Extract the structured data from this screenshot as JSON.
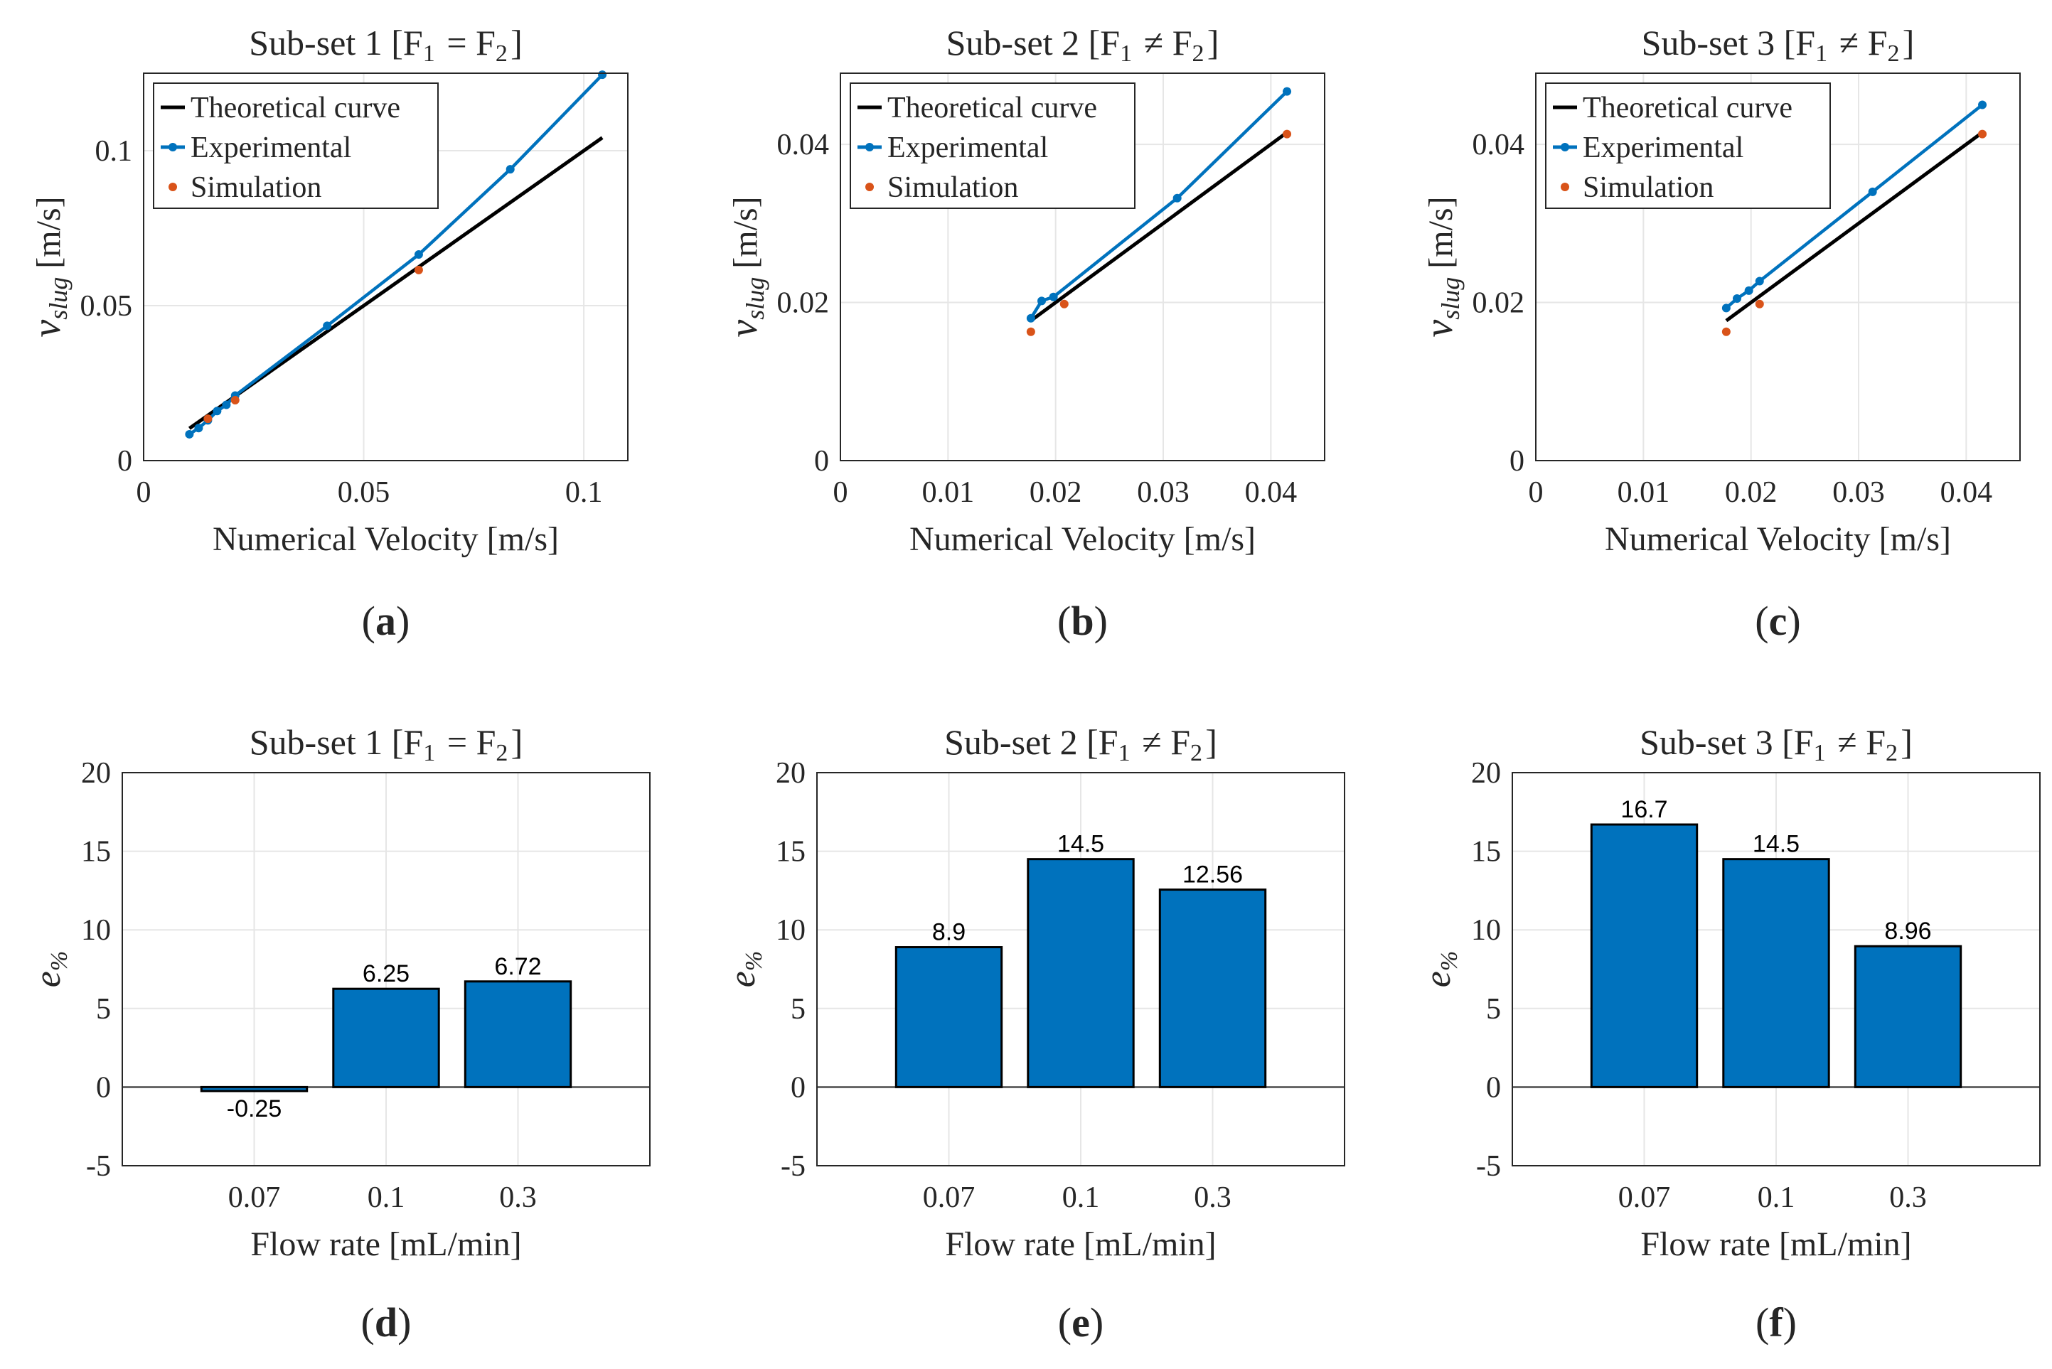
{
  "chart_data": [
    {
      "type": "line",
      "panel_label": "(a)",
      "title": "Sub-set 1 [F1 = F2]",
      "xlabel": "Numerical Velocity [m/s]",
      "ylabel": "v_slug [m/s]",
      "xlim": [
        0,
        0.11
      ],
      "ylim": [
        0,
        0.125
      ],
      "xticks": [
        0,
        0.05,
        0.1
      ],
      "xtick_labels": [
        "0",
        "0.05",
        "0.1"
      ],
      "yticks": [
        0,
        0.05,
        0.1
      ],
      "ytick_labels": [
        "0",
        "0.05",
        "0.1"
      ],
      "grid": true,
      "legend_position": "top-left",
      "series": [
        {
          "name": "Theoretical curve",
          "color": "#000000",
          "style": "line",
          "x": [
            0.0104,
            0.1042
          ],
          "y": [
            0.0104,
            0.1042
          ]
        },
        {
          "name": "Experimental",
          "color": "#0072BD",
          "style": "line-marker",
          "x": [
            0.0104,
            0.0125,
            0.0146,
            0.0167,
            0.0188,
            0.0208,
            0.0417,
            0.0625,
            0.0833,
            0.1042
          ],
          "y": [
            0.0085,
            0.0105,
            0.013,
            0.016,
            0.018,
            0.021,
            0.0435,
            0.0665,
            0.094,
            0.1245
          ]
        },
        {
          "name": "Simulation",
          "color": "#D95319",
          "style": "marker",
          "x": [
            0.0146,
            0.0208,
            0.0625
          ],
          "y": [
            0.0135,
            0.0195,
            0.0615
          ]
        }
      ]
    },
    {
      "type": "line",
      "panel_label": "(b)",
      "title": "Sub-set 2 [F1 ≠ F2]",
      "xlabel": "Numerical Velocity [m/s]",
      "ylabel": "v_slug [m/s]",
      "xlim": [
        0,
        0.045
      ],
      "ylim": [
        0,
        0.049
      ],
      "xticks": [
        0,
        0.01,
        0.02,
        0.03,
        0.04
      ],
      "xtick_labels": [
        "0",
        "0.01",
        "0.02",
        "0.03",
        "0.04"
      ],
      "yticks": [
        0,
        0.02,
        0.04
      ],
      "ytick_labels": [
        "0",
        "0.02",
        "0.04"
      ],
      "grid": true,
      "legend_position": "top-left",
      "series": [
        {
          "name": "Theoretical curve",
          "color": "#000000",
          "style": "line",
          "x": [
            0.0177,
            0.0415
          ],
          "y": [
            0.0177,
            0.0415
          ]
        },
        {
          "name": "Experimental",
          "color": "#0072BD",
          "style": "line-marker",
          "x": [
            0.0177,
            0.0187,
            0.0198,
            0.0313,
            0.0415
          ],
          "y": [
            0.018,
            0.0202,
            0.0207,
            0.0332,
            0.0467
          ]
        },
        {
          "name": "Simulation",
          "color": "#D95319",
          "style": "marker",
          "x": [
            0.0177,
            0.0208,
            0.0415
          ],
          "y": [
            0.0163,
            0.0198,
            0.0413
          ]
        }
      ]
    },
    {
      "type": "line",
      "panel_label": "(c)",
      "title": "Sub-set 3 [F1 ≠ F2]",
      "xlabel": "Numerical Velocity [m/s]",
      "ylabel": "v_slug [m/s]",
      "xlim": [
        0,
        0.045
      ],
      "ylim": [
        0,
        0.049
      ],
      "xticks": [
        0,
        0.01,
        0.02,
        0.03,
        0.04
      ],
      "xtick_labels": [
        "0",
        "0.01",
        "0.02",
        "0.03",
        "0.04"
      ],
      "yticks": [
        0,
        0.02,
        0.04
      ],
      "ytick_labels": [
        "0",
        "0.02",
        "0.04"
      ],
      "grid": true,
      "legend_position": "top-left",
      "series": [
        {
          "name": "Theoretical curve",
          "color": "#000000",
          "style": "line",
          "x": [
            0.0177,
            0.0415
          ],
          "y": [
            0.0177,
            0.0415
          ]
        },
        {
          "name": "Experimental",
          "color": "#0072BD",
          "style": "line-marker",
          "x": [
            0.0177,
            0.0187,
            0.0198,
            0.0208,
            0.0313,
            0.0415
          ],
          "y": [
            0.0193,
            0.0205,
            0.0215,
            0.0227,
            0.034,
            0.045
          ]
        },
        {
          "name": "Simulation",
          "color": "#D95319",
          "style": "marker",
          "x": [
            0.0177,
            0.0208,
            0.0415
          ],
          "y": [
            0.0163,
            0.0198,
            0.0413
          ]
        }
      ]
    },
    {
      "type": "bar",
      "panel_label": "(d)",
      "title": "Sub-set 1 [F1 = F2]",
      "xlabel": "Flow rate [mL/min]",
      "ylabel": "e%",
      "categories": [
        "0.07",
        "0.1",
        "0.3"
      ],
      "values": [
        -0.25,
        6.25,
        6.72
      ],
      "value_labels": [
        "-0.25",
        "6.25",
        "6.72"
      ],
      "ylim": [
        -5,
        20
      ],
      "yticks": [
        -5,
        0,
        5,
        10,
        15,
        20
      ],
      "ytick_labels": [
        "-5",
        "0",
        "5",
        "10",
        "15",
        "20"
      ],
      "bar_color": "#0072BD",
      "grid": true
    },
    {
      "type": "bar",
      "panel_label": "(e)",
      "title": "Sub-set 2 [F1 ≠ F2]",
      "xlabel": "Flow rate [mL/min]",
      "ylabel": "e%",
      "categories": [
        "0.07",
        "0.1",
        "0.3"
      ],
      "values": [
        8.9,
        14.5,
        12.56
      ],
      "value_labels": [
        "8.9",
        "14.5",
        "12.56"
      ],
      "ylim": [
        -5,
        20
      ],
      "yticks": [
        -5,
        0,
        5,
        10,
        15,
        20
      ],
      "ytick_labels": [
        "-5",
        "0",
        "5",
        "10",
        "15",
        "20"
      ],
      "bar_color": "#0072BD",
      "grid": true
    },
    {
      "type": "bar",
      "panel_label": "(f)",
      "title": "Sub-set 3 [F1 ≠ F2]",
      "xlabel": "Flow rate [mL/min]",
      "ylabel": "e%",
      "categories": [
        "0.07",
        "0.1",
        "0.3"
      ],
      "values": [
        16.7,
        14.5,
        8.96
      ],
      "value_labels": [
        "16.7",
        "14.5",
        "8.96"
      ],
      "ylim": [
        -5,
        20
      ],
      "yticks": [
        -5,
        0,
        5,
        10,
        15,
        20
      ],
      "ytick_labels": [
        "-5",
        "0",
        "5",
        "10",
        "15",
        "20"
      ],
      "bar_color": "#0072BD",
      "grid": true
    }
  ]
}
